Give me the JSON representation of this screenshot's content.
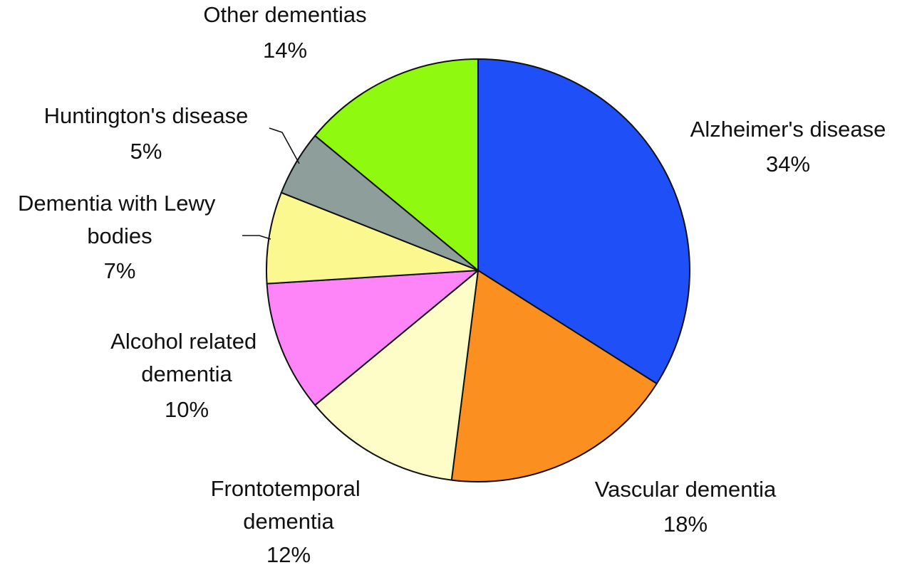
{
  "chart_data": {
    "type": "pie",
    "start_angle_deg": 0,
    "direction": "clockwise",
    "slices": [
      {
        "label": "Alzheimer's disease",
        "value": 34,
        "value_label": "34%",
        "color": "#1f4ff7"
      },
      {
        "label": "Vascular dementia",
        "value": 18,
        "value_label": "18%",
        "color": "#fb8f1f"
      },
      {
        "label": "Frontotemporal dementia",
        "value": 12,
        "value_label": "12%",
        "color": "#fefdc8"
      },
      {
        "label": "Alcohol related dementia",
        "value": 10,
        "value_label": "10%",
        "color": "#fd85f7"
      },
      {
        "label": "Dementia with Lewy bodies",
        "value": 7,
        "value_label": "7%",
        "color": "#fbf88f"
      },
      {
        "label": "Huntington's disease",
        "value": 5,
        "value_label": "5%",
        "color": "#8d9e9b"
      },
      {
        "label": "Other dementias",
        "value": 14,
        "value_label": "14%",
        "color": "#8ff90f"
      }
    ]
  }
}
